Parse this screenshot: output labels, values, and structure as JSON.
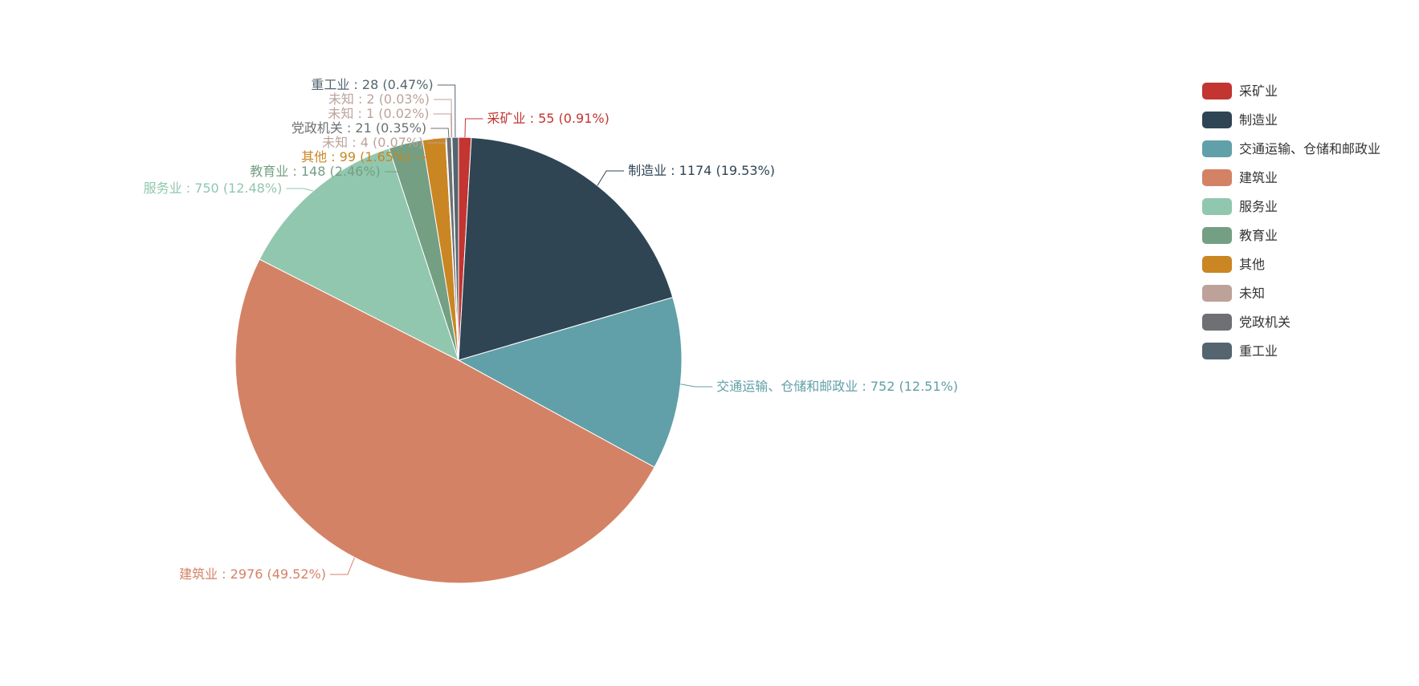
{
  "chart_data": {
    "type": "pie",
    "legend_position": "top-right",
    "slices": [
      {
        "name": "采矿业",
        "value": 55,
        "percent": "0.91%",
        "color": "#c23531",
        "label_side": "right"
      },
      {
        "name": "制造业",
        "value": 1174,
        "percent": "19.53%",
        "color": "#2f4554",
        "label_side": "right"
      },
      {
        "name": "交通运输、仓储和邮政业",
        "value": 752,
        "percent": "12.51%",
        "color": "#61a0a8",
        "label_side": "right"
      },
      {
        "name": "建筑业",
        "value": 2976,
        "percent": "49.52%",
        "color": "#d48265",
        "label_side": "left"
      },
      {
        "name": "服务业",
        "value": 750,
        "percent": "12.48%",
        "color": "#91c7ae",
        "label_side": "left"
      },
      {
        "name": "教育业",
        "value": 148,
        "percent": "2.46%",
        "color": "#749f83",
        "label_side": "left"
      },
      {
        "name": "其他",
        "value": 99,
        "percent": "1.65%",
        "color": "#ca8622",
        "label_side": "left"
      },
      {
        "name": "未知",
        "value": 4,
        "percent": "0.07%",
        "color": "#bda29a",
        "label_side": "left"
      },
      {
        "name": "党政机关",
        "value": 21,
        "percent": "0.35%",
        "color": "#6e7074",
        "label_side": "left"
      },
      {
        "name": "未知",
        "value": 1,
        "percent": "0.02%",
        "color": "#bda29a",
        "label_side": "left"
      },
      {
        "name": "未知",
        "value": 2,
        "percent": "0.03%",
        "color": "#bda29a",
        "label_side": "left"
      },
      {
        "name": "重工业",
        "value": 28,
        "percent": "0.47%",
        "color": "#546570",
        "label_side": "left"
      }
    ],
    "legend": [
      {
        "name": "采矿业",
        "color": "#c23531"
      },
      {
        "name": "制造业",
        "color": "#2f4554"
      },
      {
        "name": "交通运输、仓储和邮政业",
        "color": "#61a0a8"
      },
      {
        "name": "建筑业",
        "color": "#d48265"
      },
      {
        "name": "服务业",
        "color": "#91c7ae"
      },
      {
        "name": "教育业",
        "color": "#749f83"
      },
      {
        "name": "其他",
        "color": "#ca8622"
      },
      {
        "name": "未知",
        "color": "#bda29a"
      },
      {
        "name": "党政机关",
        "color": "#6e7074"
      },
      {
        "name": "重工业",
        "color": "#546570"
      }
    ]
  }
}
